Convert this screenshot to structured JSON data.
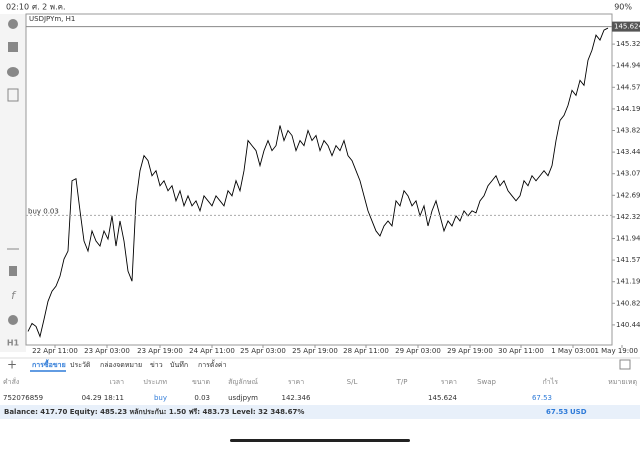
{
  "status_bar": {
    "time": "02:10",
    "date": "ศ. 2 พ.ค.",
    "battery": "90%"
  },
  "toolbar": {
    "timeframe": "H1"
  },
  "chart_data": {
    "type": "line",
    "title": "USDJPYm, H1",
    "series": [
      {
        "name": "USDJPYm",
        "color": "#000000",
        "values": [
          140.332,
          140.471,
          140.419,
          140.244,
          140.541,
          140.855,
          141.029,
          141.117,
          141.291,
          141.588,
          141.727,
          142.948,
          142.983,
          142.425,
          141.901,
          141.727,
          142.076,
          141.901,
          141.814,
          142.076,
          141.936,
          142.338,
          141.814,
          142.25,
          141.901,
          141.378,
          141.204,
          142.599,
          143.122,
          143.384,
          143.297,
          143.035,
          143.122,
          142.861,
          142.948,
          142.774,
          142.861,
          142.599,
          142.774,
          142.512,
          142.686,
          142.512,
          142.599,
          142.425,
          142.686,
          142.599,
          142.512,
          142.686,
          142.599,
          142.512,
          142.774,
          142.686,
          142.948,
          142.774,
          143.122,
          143.646,
          143.558,
          143.471,
          143.21,
          143.471,
          143.646,
          143.471,
          143.558,
          143.907,
          143.646,
          143.82,
          143.733,
          143.471,
          143.646,
          143.558,
          143.82,
          143.646,
          143.733,
          143.471,
          143.646,
          143.558,
          143.384,
          143.558,
          143.471,
          143.646,
          143.384,
          143.297,
          143.122,
          142.948,
          142.686,
          142.425,
          142.25,
          142.076,
          141.989,
          142.163,
          142.25,
          142.163,
          142.599,
          142.512,
          142.774,
          142.686,
          142.512,
          142.599,
          142.338,
          142.512,
          142.163,
          142.425,
          142.599,
          142.338,
          142.076,
          142.25,
          142.163,
          142.338,
          142.25,
          142.425,
          142.338,
          142.425,
          142.39,
          142.599,
          142.686,
          142.861,
          142.948,
          143.035,
          142.861,
          142.948,
          142.774,
          142.686,
          142.599,
          142.686,
          142.948,
          142.861,
          143.035,
          142.948,
          143.035,
          143.122,
          143.035,
          143.21,
          143.646,
          143.994,
          144.082,
          144.256,
          144.518,
          144.43,
          144.692,
          144.605,
          145.041,
          145.215,
          145.477,
          145.39,
          145.564,
          145.599
        ]
      }
    ],
    "xlim": [
      -0.5,
      146
    ],
    "xticks": [
      {
        "value": 6.75,
        "label": "22 Apr 11:00"
      },
      {
        "value": 19.75,
        "label": "23 Apr 03:00"
      },
      {
        "value": 33,
        "label": "23 Apr 19:00"
      },
      {
        "value": 46,
        "label": "24 Apr 11:00"
      },
      {
        "value": 58.75,
        "label": "25 Apr 03:00"
      },
      {
        "value": 71.75,
        "label": "25 Apr 19:00"
      },
      {
        "value": 84.5,
        "label": "28 Apr 11:00"
      },
      {
        "value": 97.5,
        "label": "29 Apr 03:00"
      },
      {
        "value": 110.5,
        "label": "29 Apr 19:00"
      },
      {
        "value": 123.25,
        "label": "30 Apr 11:00"
      },
      {
        "value": 136.25,
        "label": "1 May 03:00"
      },
      {
        "value": 148.5,
        "label": "1 May 19:00"
      }
    ],
    "ylim": [
      140.096,
      145.843
    ],
    "yticks": [
      {
        "value": 140.445,
        "label": "140.445"
      },
      {
        "value": 140.82,
        "label": "140.820"
      },
      {
        "value": 141.195,
        "label": "141.195"
      },
      {
        "value": 141.57,
        "label": "141.570"
      },
      {
        "value": 141.945,
        "label": "141.945"
      },
      {
        "value": 142.32,
        "label": "142.320"
      },
      {
        "value": 142.695,
        "label": "142.695"
      },
      {
        "value": 143.07,
        "label": "143.070"
      },
      {
        "value": 143.445,
        "label": "143.445"
      },
      {
        "value": 143.82,
        "label": "143.820"
      },
      {
        "value": 144.195,
        "label": "144.195"
      },
      {
        "value": 144.57,
        "label": "144.570"
      },
      {
        "value": 144.945,
        "label": "144.945"
      },
      {
        "value": 145.32,
        "label": "145.320"
      }
    ],
    "position_line": {
      "label": "buy 0.03",
      "value": 142.346
    },
    "current_price": {
      "value": 145.624
    },
    "grid": false
  },
  "tabs": [
    "การซื้อขาย",
    "ประวัติ",
    "กล่องจดหมาย",
    "ข่าว",
    "บันทึก",
    "การตั้งค่า"
  ],
  "table": {
    "headers": [
      "คำสั่ง",
      "เวลา",
      "ประเภท",
      "ขนาด",
      "สัญลักษณ์",
      "ราคา",
      "S/L",
      "T/P",
      "ราคา",
      "Swap",
      "กำไร",
      "หมายเหตุ"
    ],
    "row": {
      "ticket": "752076859",
      "time": "04.29 18:11",
      "type": "buy",
      "volume": "0.03",
      "symbol": "usdjpym",
      "open_price": "142.346",
      "price": "145.624",
      "profit": "67.53"
    }
  },
  "footer": {
    "summary": "Balance: 417.70 Equity: 485.23 หลักประกัน: 1.50 ฟรี: 483.73 Level: 32 348.67%",
    "profit": "67.53",
    "currency": "USD"
  }
}
